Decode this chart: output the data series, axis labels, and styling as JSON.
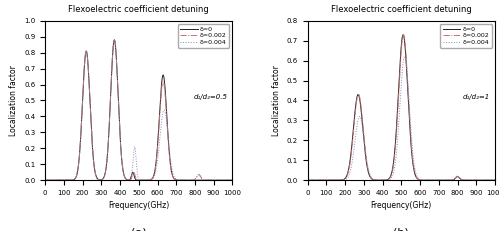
{
  "title": "Flexoelectric coefficient detuning",
  "xlabel": "Frequency(GHz)",
  "ylabel": "Localization factor",
  "subplot_a": {
    "label": "d₁/d₂=0.5",
    "ylim": [
      0,
      1.0
    ],
    "yticks": [
      0.0,
      0.1,
      0.2,
      0.3,
      0.4,
      0.5,
      0.6,
      0.7,
      0.8,
      0.9,
      1.0
    ],
    "xlim": [
      0,
      1000
    ],
    "xticks": [
      0,
      100,
      200,
      300,
      400,
      500,
      600,
      700,
      800,
      900,
      1000
    ]
  },
  "subplot_b": {
    "label": "d₁/d₂=1",
    "ylim": [
      0,
      0.8
    ],
    "yticks": [
      0.0,
      0.1,
      0.2,
      0.3,
      0.4,
      0.5,
      0.6,
      0.7,
      0.8
    ],
    "xlim": [
      0,
      1000
    ],
    "xticks": [
      0,
      100,
      200,
      300,
      400,
      500,
      600,
      700,
      800,
      900,
      1000
    ]
  },
  "legend_labels": [
    "δ=0",
    "δ=0.002",
    "δ=0.004"
  ],
  "color_d0": "#222222",
  "color_d002": "#c87070",
  "color_d004": "#8888bb",
  "linewidth": 0.7
}
